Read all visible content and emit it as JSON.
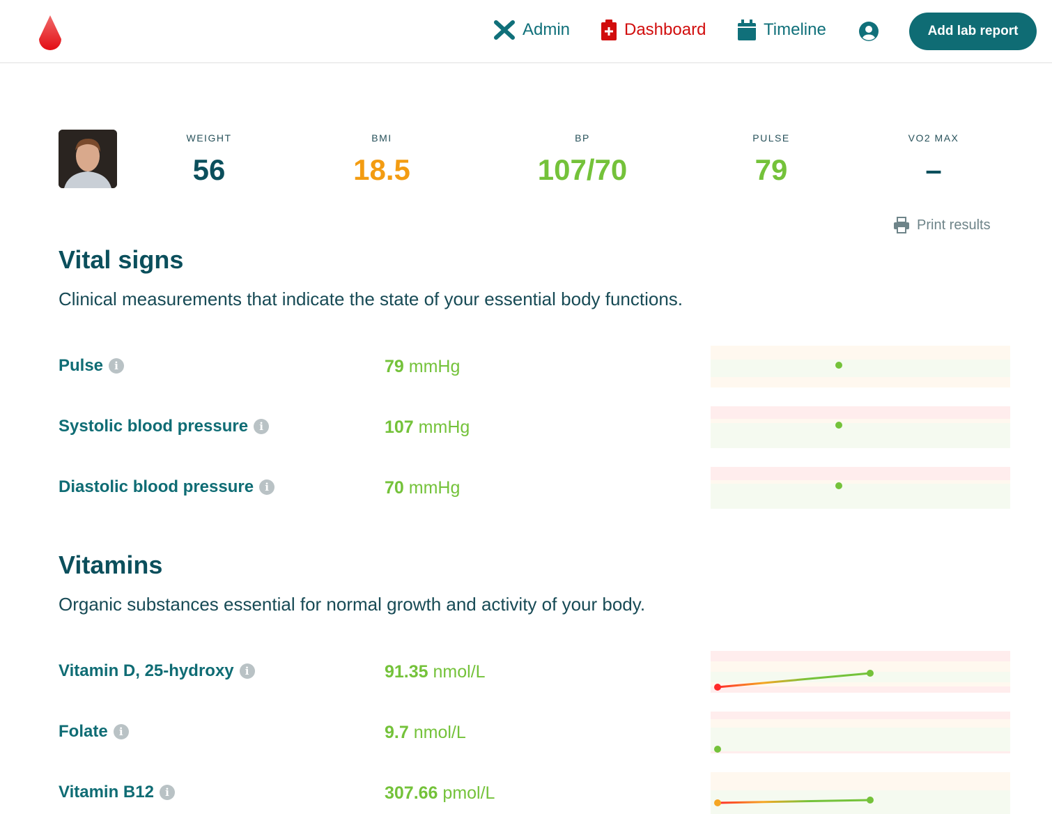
{
  "nav": {
    "admin": "Admin",
    "dashboard": "Dashboard",
    "timeline": "Timeline",
    "add_button": "Add lab report"
  },
  "stats": [
    {
      "label": "WEIGHT",
      "value": "56",
      "color": "#0b4f5c"
    },
    {
      "label": "BMI",
      "value": "18.5",
      "color": "#f39c12"
    },
    {
      "label": "BP",
      "value": "107/70",
      "color": "#74c23a"
    },
    {
      "label": "PULSE",
      "value": "79",
      "color": "#74c23a"
    },
    {
      "label": "VO2 MAX",
      "value": "–",
      "color": "#0b4f5c"
    }
  ],
  "print_label": "Print results",
  "sections": [
    {
      "title": "Vital signs",
      "description": "Clinical measurements that indicate the state of your essential body functions.",
      "rows": [
        {
          "name": "Pulse",
          "value": "79",
          "unit": "mmHg"
        },
        {
          "name": "Systolic blood pressure",
          "value": "107",
          "unit": "mmHg"
        },
        {
          "name": "Diastolic blood pressure",
          "value": "70",
          "unit": "mmHg"
        }
      ]
    },
    {
      "title": "Vitamins",
      "description": "Organic substances essential for normal growth and activity of your body.",
      "rows": [
        {
          "name": "Vitamin D, 25-hydroxy",
          "value": "91.35",
          "unit": "nmol/L"
        },
        {
          "name": "Folate",
          "value": "9.7",
          "unit": "nmol/L"
        },
        {
          "name": "Vitamin B12",
          "value": "307.66",
          "unit": "pmol/L"
        }
      ]
    }
  ],
  "colors": {
    "teal": "#0f6c74",
    "red": "#d10d0d",
    "green": "#74c23a",
    "orange": "#f39c12"
  }
}
